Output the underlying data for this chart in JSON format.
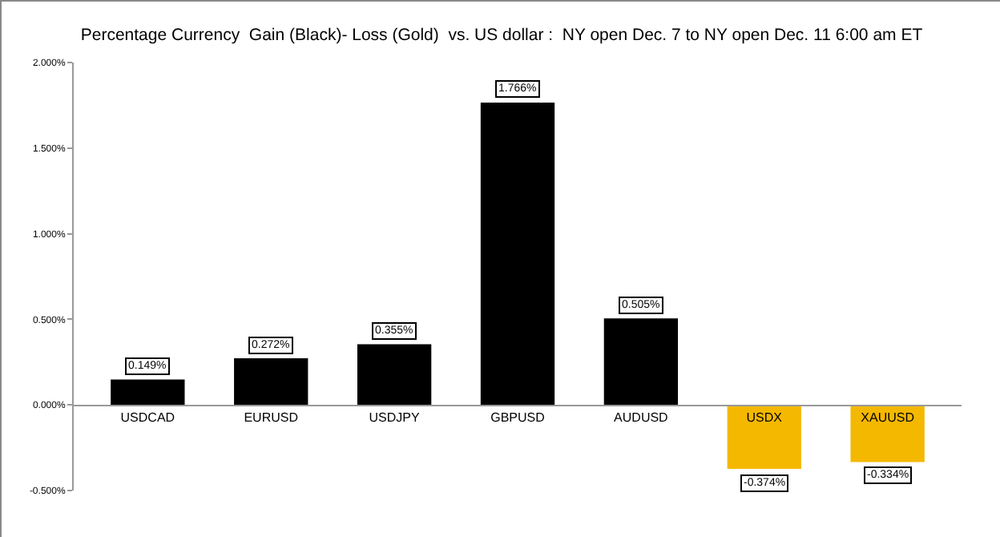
{
  "chart_data": {
    "type": "bar",
    "title": "Percentage Currency  Gain (Black)- Loss (Gold)  vs. US dollar :  NY open Dec. 7 to NY open Dec. 11 6:00 am ET",
    "categories": [
      "USDCAD",
      "EURUSD",
      "USDJPY",
      "GBPUSD",
      "AUDUSD",
      "USDX",
      "XAUUSD"
    ],
    "values": [
      0.149,
      0.272,
      0.355,
      1.766,
      0.505,
      -0.374,
      -0.334
    ],
    "colors": [
      "#000000",
      "#000000",
      "#000000",
      "#000000",
      "#000000",
      "#f5b800",
      "#f5b800"
    ],
    "value_labels": [
      "0.149%",
      "0.272%",
      "0.355%",
      "1.766%",
      "0.505%",
      "-0.374%",
      "-0.334%"
    ],
    "ylim": [
      -0.5,
      2
    ],
    "yticks": [
      {
        "value": -0.5,
        "label": "-0.500%"
      },
      {
        "value": 0,
        "label": "0.000%"
      },
      {
        "value": 0.5,
        "label": "0.500%"
      },
      {
        "value": 1,
        "label": "1.000%"
      },
      {
        "value": 1.5,
        "label": "1.500%"
      },
      {
        "value": 2,
        "label": "2.000%"
      }
    ]
  }
}
